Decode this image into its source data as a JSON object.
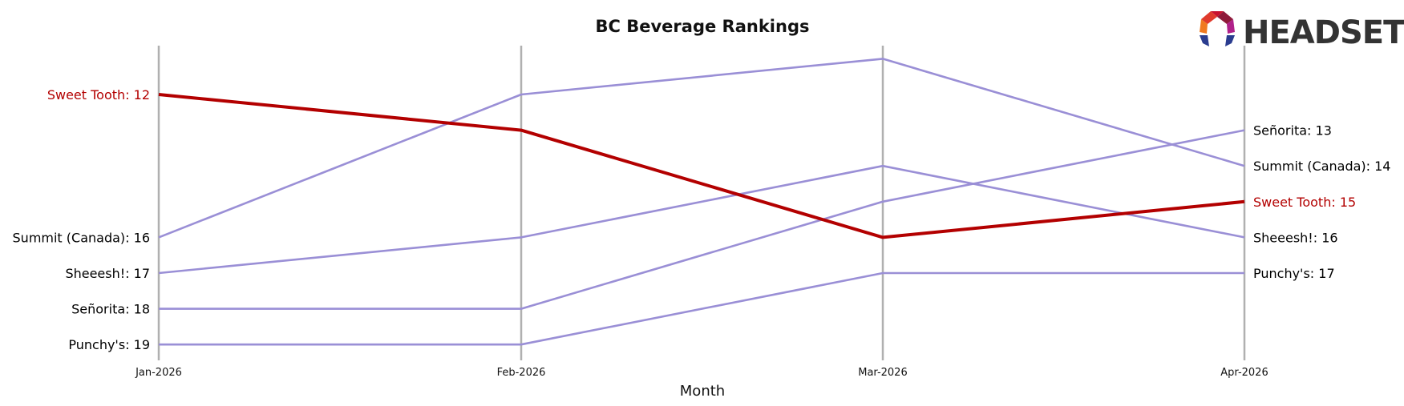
{
  "chart_data": {
    "type": "line",
    "title": "BC Beverage Rankings",
    "xlabel": "Month",
    "ylabel": "",
    "x": [
      "Jan-2026",
      "Feb-2026",
      "Mar-2026",
      "Apr-2026"
    ],
    "y_scale": "rank (inverted, 1 at top)",
    "grid": "vertical lines at each month",
    "highlight_color": "#b30000",
    "series_color": "#9a8fd6",
    "gridline_color": "#b0b0b0",
    "series": [
      {
        "name": "Sweet Tooth",
        "values": [
          12,
          13,
          16,
          15
        ],
        "highlight": true
      },
      {
        "name": "Summit (Canada)",
        "values": [
          16,
          12,
          11,
          14
        ],
        "highlight": false
      },
      {
        "name": "Sheeesh!",
        "values": [
          17,
          16,
          14,
          16
        ],
        "highlight": false
      },
      {
        "name": "Señorita",
        "values": [
          18,
          18,
          15,
          13
        ],
        "highlight": false
      },
      {
        "name": "Punchy's",
        "values": [
          19,
          19,
          17,
          17
        ],
        "highlight": false
      }
    ]
  },
  "logo": {
    "text": "HEADSET"
  }
}
